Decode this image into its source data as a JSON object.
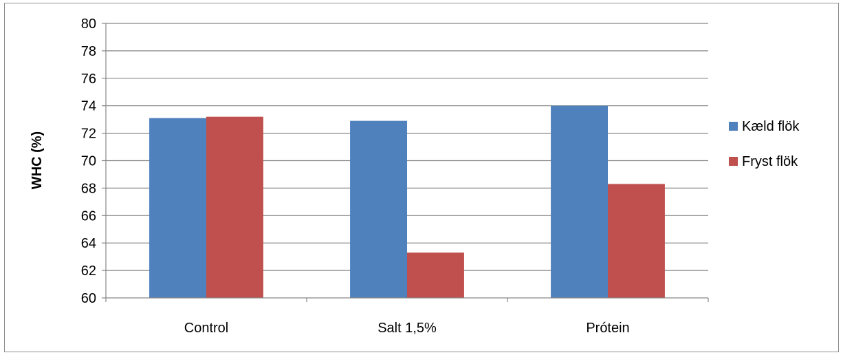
{
  "chart_data": {
    "type": "bar",
    "title": "",
    "xlabel": "",
    "ylabel": "WHC (%)",
    "categories": [
      "Control",
      "Salt 1,5%",
      "Prótein"
    ],
    "series": [
      {
        "name": "Kæld flök",
        "color": "#4f81bd",
        "values": [
          73.1,
          72.9,
          74.0
        ]
      },
      {
        "name": "Fryst flök",
        "color": "#c0504d",
        "values": [
          73.2,
          63.3,
          68.3
        ]
      }
    ],
    "ylim": [
      60,
      80
    ],
    "yticks": [
      60,
      62,
      64,
      66,
      68,
      70,
      72,
      74,
      76,
      78,
      80
    ],
    "grid": true,
    "legend_position": "right"
  }
}
